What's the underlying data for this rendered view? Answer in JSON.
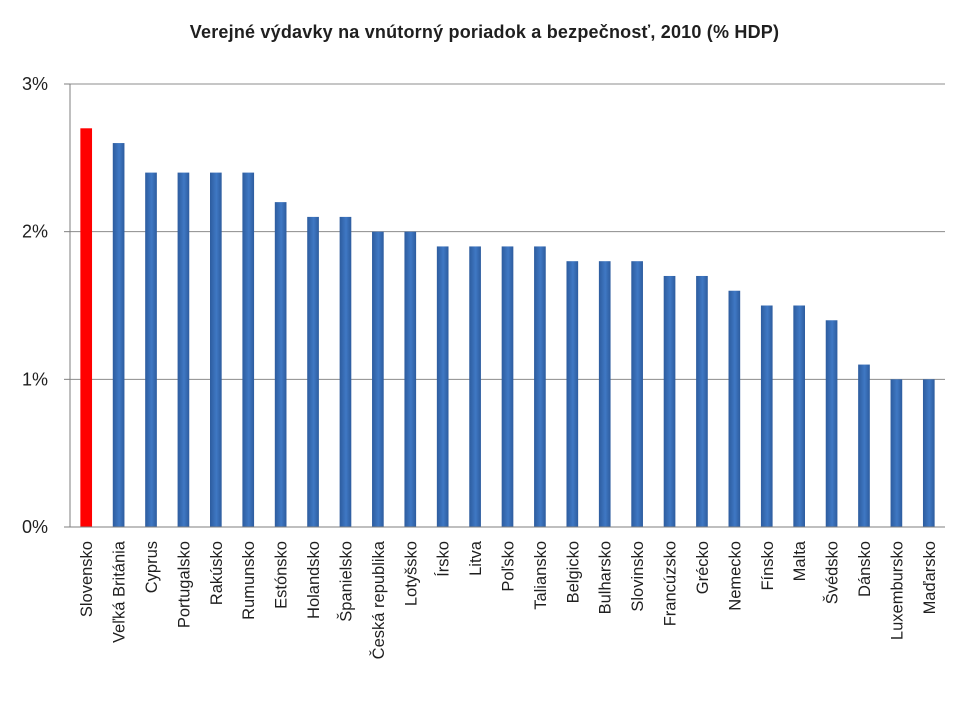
{
  "chart_data": {
    "type": "bar",
    "title": "Verejné výdavky  na vnútorný poriadok a bezpečnosť, 2010 (% HDP)",
    "xlabel": "",
    "ylabel": "",
    "ylim": [
      0,
      3
    ],
    "yticks": [
      0,
      1,
      2,
      3
    ],
    "ytick_labels": [
      "0%",
      "1%",
      "2%",
      "3%"
    ],
    "grid": true,
    "legend": "none",
    "categories": [
      "Slovensko",
      "Veľká Británia",
      "Cyprus",
      "Portugalsko",
      "Rakúsko",
      "Rumunsko",
      "Estónsko",
      "Holandsko",
      "Španielsko",
      "Česká republika",
      "Lotyšsko",
      "Írsko",
      "Litva",
      "Poľsko",
      "Taliansko",
      "Belgicko",
      "Bulharsko",
      "Slovinsko",
      "Francúzsko",
      "Grécko",
      "Nemecko",
      "Fínsko",
      "Malta",
      "Švédsko",
      "Dánsko",
      "Luxembursko",
      "Maďarsko"
    ],
    "values": [
      2.7,
      2.6,
      2.4,
      2.4,
      2.4,
      2.4,
      2.2,
      2.1,
      2.1,
      2.0,
      2.0,
      1.9,
      1.9,
      1.9,
      1.9,
      1.8,
      1.8,
      1.8,
      1.7,
      1.7,
      1.6,
      1.5,
      1.5,
      1.4,
      1.1,
      1.0,
      1.0
    ],
    "highlight_index": 0,
    "colors": {
      "bar": "#3f78c4",
      "bar_dark": "#2d5c9e",
      "highlight": "#ff0000",
      "grid": "#8c8c8c",
      "axis": "#7f7f7f"
    }
  }
}
